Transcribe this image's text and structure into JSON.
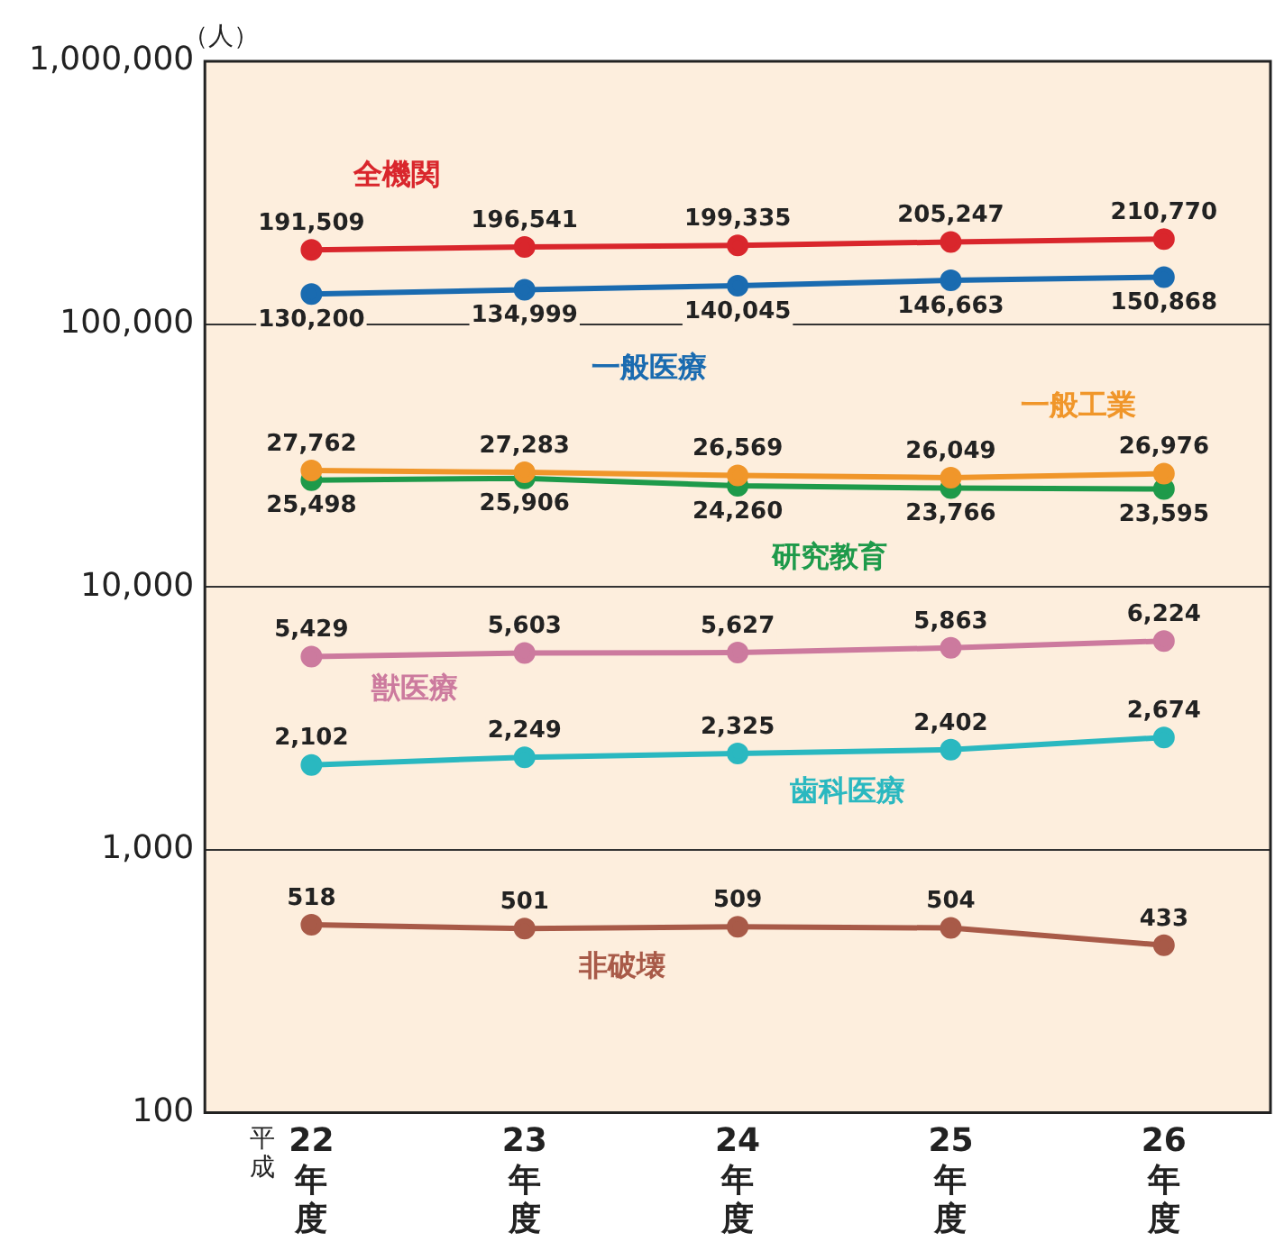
{
  "chart_data": {
    "type": "line",
    "ylabel": "（人）",
    "categories": [
      "22年度",
      "23年度",
      "24年度",
      "25年度",
      "26年度"
    ],
    "series": [
      {
        "name": "全機関",
        "color": "#d9262c",
        "values": [
          191509,
          196541,
          199335,
          205247,
          210770
        ],
        "value_labels": [
          "191,509",
          "196,541",
          "199,335",
          "205,247",
          "210,770"
        ]
      },
      {
        "name": "一般医療",
        "color": "#1a6bb0",
        "values": [
          130200,
          134999,
          140045,
          146663,
          150868
        ],
        "value_labels": [
          "130,200",
          "134,999",
          "140,045",
          "146,663",
          "150,868"
        ]
      },
      {
        "name": "一般工業",
        "color": "#f0962a",
        "values": [
          27762,
          27283,
          26569,
          26049,
          26976
        ],
        "value_labels": [
          "27,762",
          "27,283",
          "26,569",
          "26,049",
          "26,976"
        ]
      },
      {
        "name": "研究教育",
        "color": "#1e9a4a",
        "values": [
          25498,
          25906,
          24260,
          23766,
          23595
        ],
        "value_labels": [
          "25,498",
          "25,906",
          "24,260",
          "23,766",
          "23,595"
        ]
      },
      {
        "name": "獣医療",
        "color": "#cc7a9e",
        "values": [
          5429,
          5603,
          5627,
          5863,
          6224
        ],
        "value_labels": [
          "5,429",
          "5,603",
          "5,627",
          "5,863",
          "6,224"
        ]
      },
      {
        "name": "歯科医療",
        "color": "#2ab8c0",
        "values": [
          2102,
          2249,
          2325,
          2402,
          2674
        ],
        "value_labels": [
          "2,102",
          "2,249",
          "2,325",
          "2,402",
          "2,674"
        ]
      },
      {
        "name": "非破壊",
        "color": "#a85a48",
        "values": [
          518,
          501,
          509,
          504,
          433
        ],
        "value_labels": [
          "518",
          "501",
          "509",
          "504",
          "433"
        ]
      }
    ],
    "log": true,
    "ylim": [
      100,
      1000000
    ],
    "yticks": [
      {
        "value": 100,
        "label": "100"
      },
      {
        "value": 1000,
        "label": "1,000"
      },
      {
        "value": 10000,
        "label": "10,000"
      },
      {
        "value": 100000,
        "label": "100,000"
      },
      {
        "value": 1000000,
        "label": "1,000,000"
      }
    ],
    "grid": "y",
    "legend": false,
    "marker": "circle",
    "line_style": "solid",
    "annotations": [
      "平成"
    ]
  }
}
